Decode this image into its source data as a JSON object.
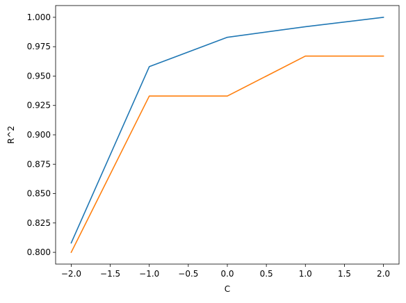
{
  "chart_data": {
    "type": "line",
    "title": "",
    "xlabel": "C",
    "ylabel": "R^2",
    "xlim": [
      -2.2,
      2.2
    ],
    "ylim": [
      0.79,
      1.01
    ],
    "grid": false,
    "x_ticks": [
      -2.0,
      -1.5,
      -1.0,
      -0.5,
      0.0,
      0.5,
      1.0,
      1.5,
      2.0
    ],
    "x_tick_labels": [
      "−2.0",
      "−1.5",
      "−1.0",
      "−0.5",
      "0.0",
      "0.5",
      "1.0",
      "1.5",
      "2.0"
    ],
    "y_ticks": [
      0.8,
      0.825,
      0.85,
      0.875,
      0.9,
      0.925,
      0.95,
      0.975,
      1.0
    ],
    "y_tick_labels": [
      "0.800",
      "0.825",
      "0.850",
      "0.875",
      "0.900",
      "0.925",
      "0.950",
      "0.975",
      "1.000"
    ],
    "x": [
      -2,
      -1,
      0,
      1,
      2
    ],
    "series": [
      {
        "color": "#1f77b4",
        "values": [
          0.808,
          0.958,
          0.983,
          0.992,
          1.0
        ]
      },
      {
        "color": "#ff7f0e",
        "values": [
          0.8,
          0.933,
          0.933,
          0.967,
          0.967
        ]
      }
    ]
  }
}
